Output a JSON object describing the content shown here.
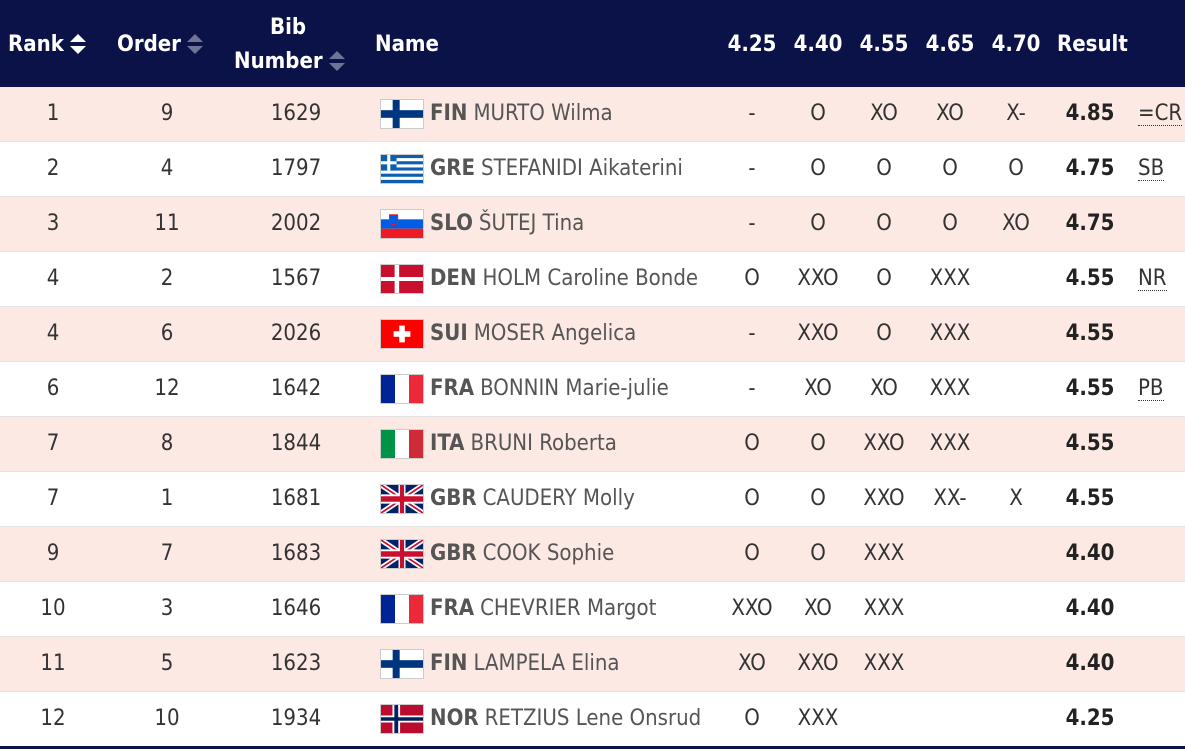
{
  "header": {
    "rank": "Rank",
    "order": "Order",
    "bib_line1": "Bib",
    "bib_line2": "Number",
    "name": "Name",
    "heights": [
      "4.25",
      "4.40",
      "4.55",
      "4.65",
      "4.70"
    ],
    "result": "Result"
  },
  "rows": [
    {
      "rank": "1",
      "order": "9",
      "bib": "1629",
      "noc": "FIN",
      "flag": "finland-flag-icon",
      "name": "MURTO Wilma",
      "attempts": [
        "-",
        "O",
        "XO",
        "XO",
        "X-"
      ],
      "result": "4.85",
      "record": "=CR"
    },
    {
      "rank": "2",
      "order": "4",
      "bib": "1797",
      "noc": "GRE",
      "flag": "greece-flag-icon",
      "name": "STEFANIDI Aikaterini",
      "attempts": [
        "-",
        "O",
        "O",
        "O",
        "O"
      ],
      "result": "4.75",
      "record": "SB"
    },
    {
      "rank": "3",
      "order": "11",
      "bib": "2002",
      "noc": "SLO",
      "flag": "slovenia-flag-icon",
      "name": "ŠUTEJ Tina",
      "attempts": [
        "-",
        "O",
        "O",
        "O",
        "XO"
      ],
      "result": "4.75",
      "record": ""
    },
    {
      "rank": "4",
      "order": "2",
      "bib": "1567",
      "noc": "DEN",
      "flag": "denmark-flag-icon",
      "name": "HOLM Caroline Bonde",
      "attempts": [
        "O",
        "XXO",
        "O",
        "XXX",
        ""
      ],
      "result": "4.55",
      "record": "NR"
    },
    {
      "rank": "4",
      "order": "6",
      "bib": "2026",
      "noc": "SUI",
      "flag": "switzerland-flag-icon",
      "name": "MOSER Angelica",
      "attempts": [
        "-",
        "XXO",
        "O",
        "XXX",
        ""
      ],
      "result": "4.55",
      "record": ""
    },
    {
      "rank": "6",
      "order": "12",
      "bib": "1642",
      "noc": "FRA",
      "flag": "france-flag-icon",
      "name": "BONNIN Marie-julie",
      "attempts": [
        "-",
        "XO",
        "XO",
        "XXX",
        ""
      ],
      "result": "4.55",
      "record": "PB"
    },
    {
      "rank": "7",
      "order": "8",
      "bib": "1844",
      "noc": "ITA",
      "flag": "italy-flag-icon",
      "name": "BRUNI Roberta",
      "attempts": [
        "O",
        "O",
        "XXO",
        "XXX",
        ""
      ],
      "result": "4.55",
      "record": ""
    },
    {
      "rank": "7",
      "order": "1",
      "bib": "1681",
      "noc": "GBR",
      "flag": "uk-flag-icon",
      "name": "CAUDERY Molly",
      "attempts": [
        "O",
        "O",
        "XXO",
        "XX-",
        "X"
      ],
      "result": "4.55",
      "record": ""
    },
    {
      "rank": "9",
      "order": "7",
      "bib": "1683",
      "noc": "GBR",
      "flag": "uk-flag-icon",
      "name": "COOK Sophie",
      "attempts": [
        "O",
        "O",
        "XXX",
        "",
        ""
      ],
      "result": "4.40",
      "record": ""
    },
    {
      "rank": "10",
      "order": "3",
      "bib": "1646",
      "noc": "FRA",
      "flag": "france-flag-icon",
      "name": "CHEVRIER Margot",
      "attempts": [
        "XXO",
        "XO",
        "XXX",
        "",
        ""
      ],
      "result": "4.40",
      "record": ""
    },
    {
      "rank": "11",
      "order": "5",
      "bib": "1623",
      "noc": "FIN",
      "flag": "finland-flag-icon",
      "name": "LAMPELA Elina",
      "attempts": [
        "XO",
        "XXO",
        "XXX",
        "",
        ""
      ],
      "result": "4.40",
      "record": ""
    },
    {
      "rank": "12",
      "order": "10",
      "bib": "1934",
      "noc": "NOR",
      "flag": "norway-flag-icon",
      "name": "RETZIUS Lene Onsrud",
      "attempts": [
        "O",
        "XXX",
        "",
        "",
        ""
      ],
      "result": "4.25",
      "record": ""
    }
  ],
  "colors": {
    "header_bg": "#0b1247",
    "row_alt_bg": "#fde9e3"
  }
}
